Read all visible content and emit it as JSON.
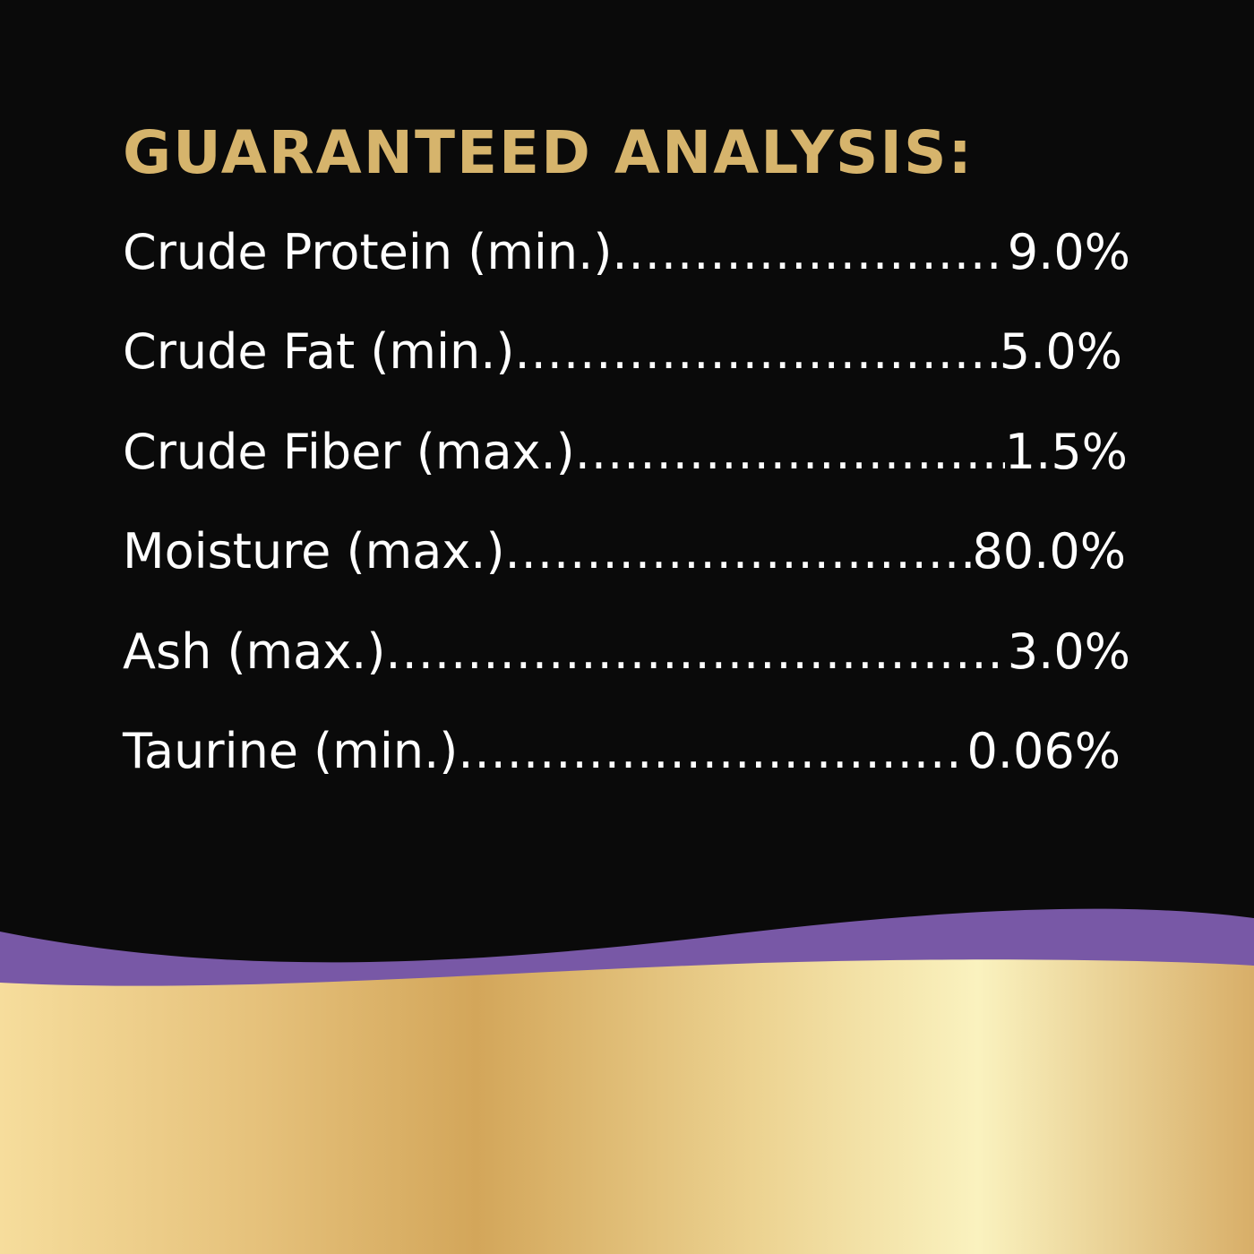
{
  "title": "GUARANTEED ANALYSIS:",
  "rows": [
    {
      "label": "Crude Protein (min.)",
      "value": "9.0%"
    },
    {
      "label": "Crude Fat (min.)",
      "value": "5.0%"
    },
    {
      "label": "Crude Fiber (max.)",
      "value": "1.5%"
    },
    {
      "label": "Moisture (max.)",
      "value": "80.0%"
    },
    {
      "label": "Ash (max.)",
      "value": "3.0%"
    },
    {
      "label": "Taurine (min.)",
      "value": "0.06%"
    }
  ],
  "colors": {
    "background": "#0a0a0a",
    "title": "#d6b46c",
    "band": "#7858a6",
    "gold": "#d4a75a"
  }
}
